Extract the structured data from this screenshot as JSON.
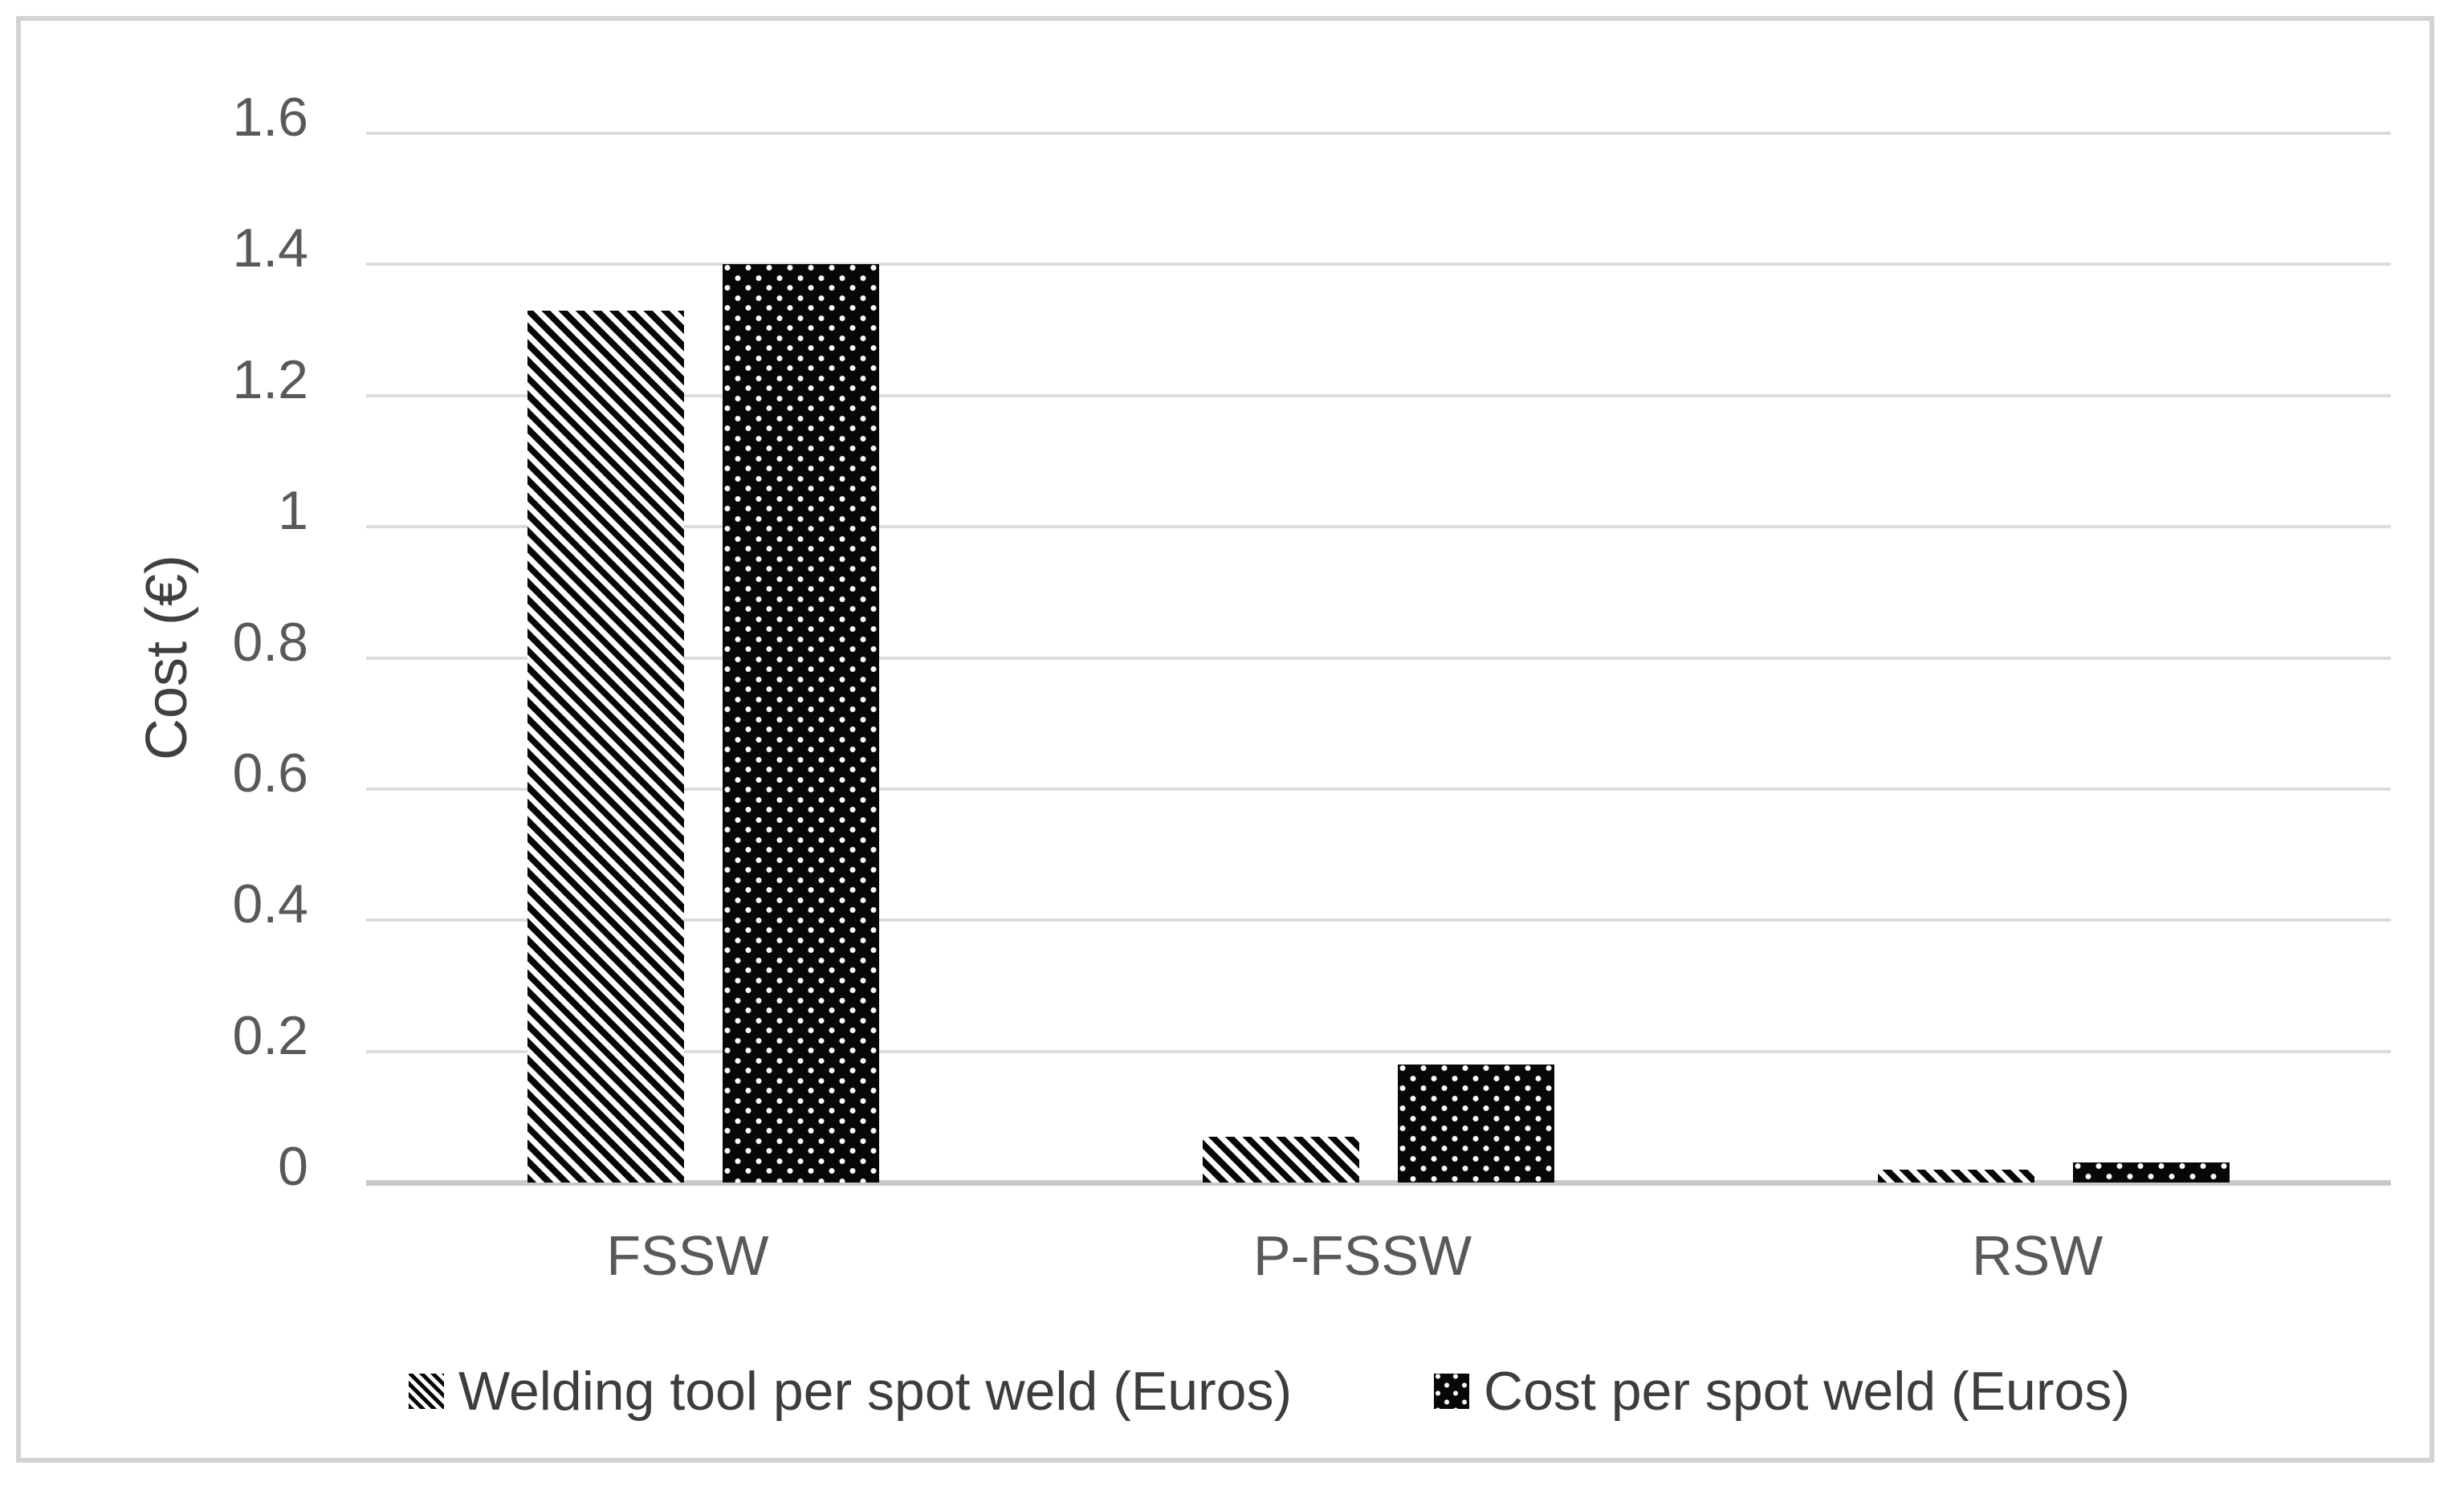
{
  "colors": {
    "background": "#ffffff",
    "frame_border": "#d3d3d3",
    "gridline": "#dcdcdc",
    "axis_line": "#c9c9c9",
    "tick_text": "#595959",
    "label_text": "#404040",
    "bar_fill": "#070707"
  },
  "chart_data": {
    "type": "bar",
    "title": "",
    "categories": [
      "FSSW",
      "P-FSSW",
      "RSW"
    ],
    "series": [
      {
        "name": "Welding tool per spot weld (Euros)",
        "values": [
          1.33,
          0.07,
          0.02
        ],
        "pattern": "diagonal-hatch"
      },
      {
        "name": "Cost per spot weld (Euros)",
        "values": [
          1.4,
          0.18,
          0.03
        ],
        "pattern": "white-dots-on-black"
      }
    ],
    "xlabel": "",
    "ylabel": "Cost (€)",
    "ylim": [
      0,
      1.6
    ],
    "yticks": [
      0,
      0.2,
      0.4,
      0.6,
      0.8,
      1,
      1.2,
      1.4,
      1.6
    ],
    "ytick_labels": [
      "0",
      "0.2",
      "0.4",
      "0.6",
      "0.8",
      "1",
      "1.2",
      "1.4",
      "1.6"
    ],
    "grid": "horizontal",
    "legend_position": "bottom"
  }
}
